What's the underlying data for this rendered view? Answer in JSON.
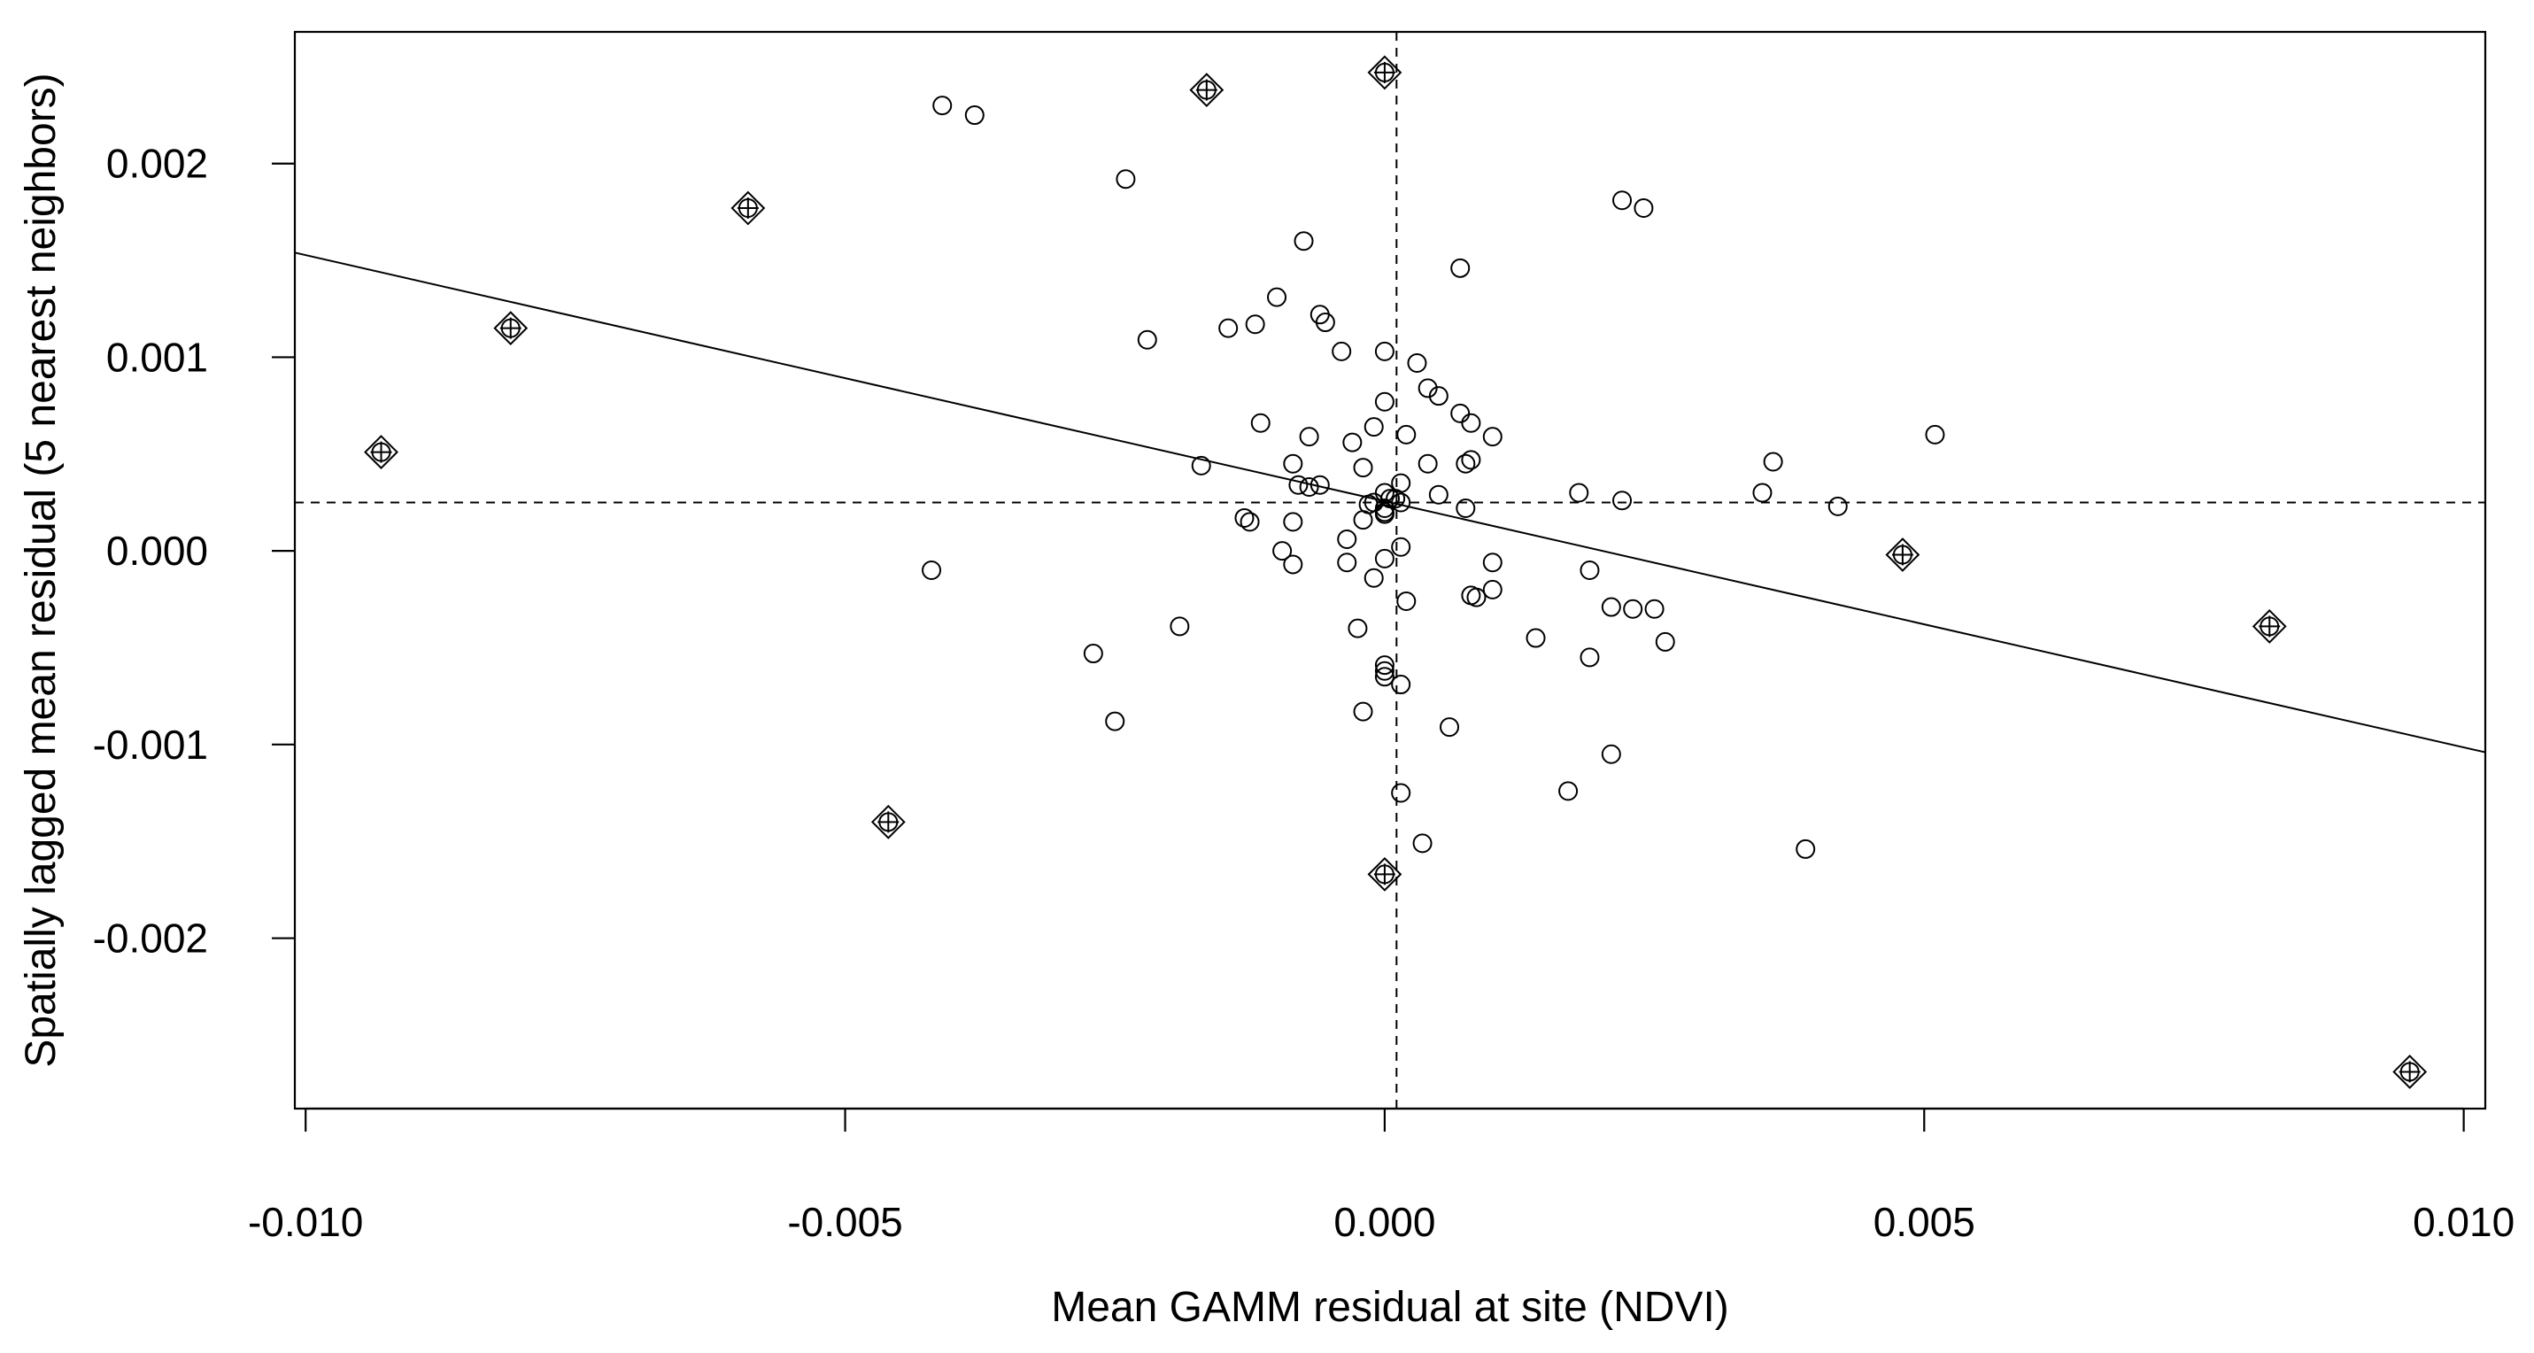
{
  "chart_data": {
    "type": "scatter",
    "title": "",
    "xlabel": "Mean GAMM residual at site (NDVI)",
    "ylabel": "Spatially lagged mean residual (5 nearest neighbors)",
    "xlim": [
      -0.0101,
      0.0102
    ],
    "ylim": [
      -0.00288,
      0.00268
    ],
    "x_ticks": [
      -0.01,
      -0.005,
      0.0,
      0.005,
      0.01
    ],
    "x_tick_labels": [
      "-0.010",
      "-0.005",
      "0.000",
      "0.005",
      "0.010"
    ],
    "y_ticks": [
      -0.002,
      -0.001,
      0.0,
      0.001,
      0.002
    ],
    "y_tick_labels": [
      "-0.002",
      "-0.001",
      "0.000",
      "0.001",
      "0.002"
    ],
    "reference_lines": {
      "x_mean": 0.00011,
      "y_mean": 0.00025
    },
    "regression_line": {
      "x": [
        -0.0101,
        0.0102
      ],
      "y": [
        0.00154,
        -0.00104
      ]
    },
    "influential_points": [
      [
        -0.0093,
        0.00051
      ],
      [
        -0.0081,
        0.00115
      ],
      [
        -0.0059,
        0.00177
      ],
      [
        -0.0046,
        -0.0014
      ],
      [
        -0.00165,
        0.00238
      ],
      [
        0.0,
        0.00247
      ],
      [
        0.0,
        -0.00167
      ],
      [
        0.0048,
        -2e-05
      ],
      [
        0.0082,
        -0.00039
      ],
      [
        0.0095,
        -0.00269
      ]
    ],
    "series": [
      {
        "name": "sites",
        "points": [
          [
            -0.0041,
            0.0023
          ],
          [
            -0.0038,
            0.00225
          ],
          [
            -0.0024,
            0.00192
          ],
          [
            -0.00075,
            0.0016
          ],
          [
            0.0007,
            0.00146
          ],
          [
            0.0022,
            0.00181
          ],
          [
            0.0024,
            0.00177
          ],
          [
            -0.001,
            0.00131
          ],
          [
            -0.0006,
            0.00122
          ],
          [
            -0.00055,
            0.00118
          ],
          [
            -0.00145,
            0.00115
          ],
          [
            -0.0012,
            0.00117
          ],
          [
            -0.0022,
            0.00109
          ],
          [
            -0.0004,
            0.00103
          ],
          [
            0.0,
            0.00103
          ],
          [
            0.0003,
            0.00097
          ],
          [
            0.0004,
            0.00084
          ],
          [
            0.0005,
            0.0008
          ],
          [
            0.0,
            0.00077
          ],
          [
            0.0007,
            0.00071
          ],
          [
            -0.00115,
            0.00066
          ],
          [
            -0.0001,
            0.00064
          ],
          [
            0.0008,
            0.00066
          ],
          [
            0.001,
            0.00059
          ],
          [
            0.0002,
            0.0006
          ],
          [
            -0.0007,
            0.00059
          ],
          [
            -0.0003,
            0.00056
          ],
          [
            0.0051,
            0.0006
          ],
          [
            -0.0017,
            0.00044
          ],
          [
            -0.00085,
            0.00045
          ],
          [
            -0.0002,
            0.00043
          ],
          [
            0.0004,
            0.00045
          ],
          [
            0.00075,
            0.00045
          ],
          [
            0.0008,
            0.00047
          ],
          [
            0.0036,
            0.00046
          ],
          [
            -0.0008,
            0.00034
          ],
          [
            -0.0007,
            0.00033
          ],
          [
            -0.0006,
            0.00034
          ],
          [
            0.00015,
            0.00035
          ],
          [
            0.0005,
            0.00029
          ],
          [
            0.0018,
            0.0003
          ],
          [
            0.0035,
            0.0003
          ],
          [
            0.0022,
            0.00026
          ],
          [
            0.0042,
            0.00023
          ],
          [
            0.00075,
            0.00022
          ],
          [
            0.0,
            0.0003
          ],
          [
            5e-05,
            0.00027
          ],
          [
            0.0001,
            0.00027
          ],
          [
            0.00015,
            0.00025
          ],
          [
            0.0,
            0.00022
          ],
          [
            0.0,
            0.0002
          ],
          [
            0.0,
            0.00019
          ],
          [
            -0.0013,
            0.00017
          ],
          [
            -0.00125,
            0.00015
          ],
          [
            -0.00085,
            0.00015
          ],
          [
            -0.0002,
            0.00016
          ],
          [
            -0.00015,
            0.00024
          ],
          [
            -0.0001,
            0.00025
          ],
          [
            -0.00035,
            6e-05
          ],
          [
            -0.00095,
            0.0
          ],
          [
            0.00015,
            2e-05
          ],
          [
            -0.00085,
            -7e-05
          ],
          [
            -0.00035,
            -6e-05
          ],
          [
            0.0,
            -4e-05
          ],
          [
            -0.0001,
            -0.00014
          ],
          [
            0.001,
            -6e-05
          ],
          [
            0.0019,
            -0.0001
          ],
          [
            0.001,
            -0.0002
          ],
          [
            0.0008,
            -0.00023
          ],
          [
            0.00085,
            -0.00024
          ],
          [
            0.0021,
            -0.00029
          ],
          [
            0.0023,
            -0.0003
          ],
          [
            0.0025,
            -0.0003
          ],
          [
            0.0002,
            -0.00026
          ],
          [
            -0.0042,
            -0.0001
          ],
          [
            -0.0019,
            -0.00039
          ],
          [
            -0.00025,
            -0.0004
          ],
          [
            0.0014,
            -0.00045
          ],
          [
            0.0026,
            -0.00047
          ],
          [
            -0.0027,
            -0.00053
          ],
          [
            0.0019,
            -0.00055
          ],
          [
            0.0,
            -0.00059
          ],
          [
            0.0,
            -0.00062
          ],
          [
            0.0,
            -0.00065
          ],
          [
            0.00015,
            -0.00069
          ],
          [
            -0.0002,
            -0.00083
          ],
          [
            -0.0025,
            -0.00088
          ],
          [
            0.0006,
            -0.00091
          ],
          [
            0.0021,
            -0.00105
          ],
          [
            0.0017,
            -0.00124
          ],
          [
            0.00015,
            -0.00125
          ],
          [
            0.00035,
            -0.00151
          ],
          [
            0.0039,
            -0.00154
          ]
        ]
      }
    ]
  }
}
